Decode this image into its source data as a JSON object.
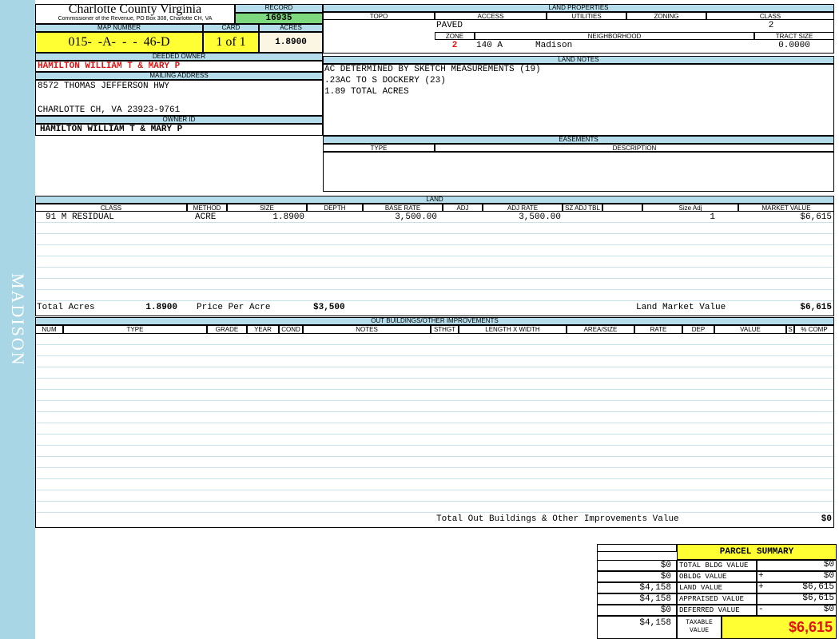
{
  "side_label": "MADISON",
  "header": {
    "title": "Charlotte County Virginia",
    "subtitle": "Commissioner of the Revenue, PO Box 308, Charlotte CH, VA"
  },
  "record": {
    "label": "RECORD",
    "value": "16935"
  },
  "map_number": {
    "label": "MAP NUMBER",
    "value": "015-  -A-  -  -  46-D"
  },
  "card": {
    "label": "CARD",
    "value": "1 of 1"
  },
  "acres": {
    "label": "ACRES",
    "value": "1.8900"
  },
  "deeded_owner": {
    "label": "DEEDED OWNER",
    "value": "HAMILTON WILLIAM T & MARY P"
  },
  "mailing_address": {
    "label": "MAILING ADDRESS",
    "lines": [
      "8572 THOMAS JEFFERSON HWY",
      "CHARLOTTE CH, VA 23923-9761"
    ]
  },
  "owner_id": {
    "label": "OWNER ID",
    "value": "HAMILTON WILLIAM T & MARY P"
  },
  "land_properties": {
    "title": "LAND PROPERTIES",
    "headers": [
      "TOPO",
      "ACCESS",
      "UTILITIES",
      "ZONING",
      "CLASS"
    ],
    "access": "PAVED",
    "class": "2",
    "zone_label": "ZONE",
    "zone": "2",
    "neighborhood_label": "NEIGHBORHOOD",
    "neighborhood_code": "140 A",
    "neighborhood_name": "Madison",
    "tract_size_label": "TRACT SIZE",
    "tract_size": "0.0000"
  },
  "land_notes": {
    "title": "LAND NOTES",
    "lines": [
      "AC DETERMINED BY SKETCH MEASUREMENTS (19)",
      ".23AC TO S DOCKERY (23)",
      "1.89 TOTAL ACRES"
    ]
  },
  "easements": {
    "title": "EASEMENTS",
    "headers": [
      "TYPE",
      "DESCRIPTION"
    ]
  },
  "land": {
    "title": "LAND",
    "headers": [
      "CLASS",
      "METHOD",
      "SIZE",
      "DEPTH",
      "BASE RATE",
      "ADJ",
      "ADJ RATE",
      "SZ ADJ TBL",
      "Size Adj",
      "MARKET VALUE"
    ],
    "rows": [
      {
        "class": "91 M RESIDUAL",
        "method": "ACRE",
        "size": "1.8900",
        "base_rate": "3,500.00",
        "adj_rate": "3,500.00",
        "size_adj": "1",
        "market_value": "$6,615"
      }
    ],
    "total_acres_label": "Total Acres",
    "total_acres": "1.8900",
    "price_per_acre_label": "Price Per Acre",
    "price_per_acre": "$3,500",
    "market_value_label": "Land Market Value",
    "market_value": "$6,615"
  },
  "outbuildings": {
    "title": "OUT BUILDINGS/OTHER IMPROVEMENTS",
    "headers": [
      "NUM",
      "TYPE",
      "GRADE",
      "YEAR",
      "COND",
      "NOTES",
      "STHGT",
      "LENGTH X WIDTH",
      "AREA/SIZE",
      "RATE",
      "DEP",
      "VALUE",
      "S",
      "% COMP"
    ],
    "total_label": "Total Out Buildings & Other Improvements Value",
    "total": "$0"
  },
  "parcel_summary": {
    "title": "PARCEL SUMMARY",
    "rows": [
      {
        "prior": "$0",
        "label": "TOTAL BLDG VALUE",
        "value": "$0"
      },
      {
        "prior": "$0",
        "label": "OBLDG VALUE",
        "op": "+",
        "value": "$0"
      },
      {
        "prior": "$4,158",
        "label": "LAND VALUE",
        "op": "+",
        "value": "$6,615"
      },
      {
        "prior": "$4,158",
        "label": "APPRAISED VALUE",
        "value": "$6,615"
      },
      {
        "prior": "$0",
        "label": "DEFERRED VALUE",
        "op": "-",
        "value": "$0"
      }
    ],
    "taxable": {
      "prior": "$4,158",
      "label": "TAXABLE VALUE",
      "value": "$6,615"
    }
  }
}
